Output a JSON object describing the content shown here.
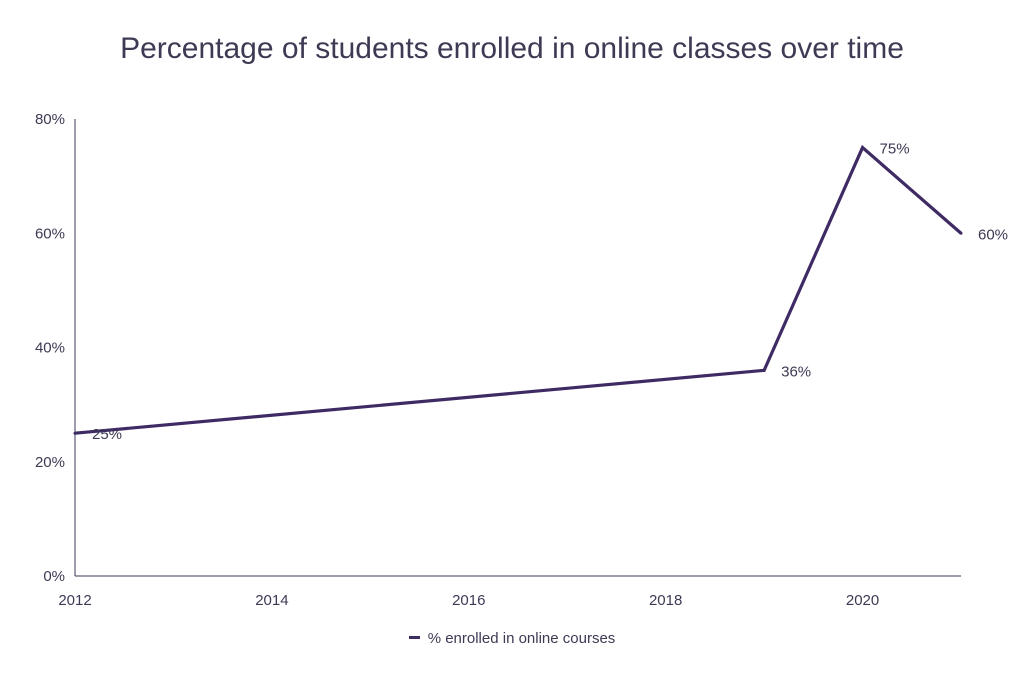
{
  "chart_data": {
    "type": "line",
    "title": "Percentage of students enrolled in online classes over time",
    "xlabel": "",
    "ylabel": "",
    "x_ticks": [
      "2012",
      "2014",
      "2016",
      "2018",
      "2020"
    ],
    "y_ticks": [
      "0%",
      "20%",
      "40%",
      "60%",
      "80%"
    ],
    "xlim": [
      2012,
      2021
    ],
    "ylim": [
      0,
      80
    ],
    "grid": false,
    "legend_position": "bottom",
    "series": [
      {
        "name": "% enrolled in online courses",
        "color": "#3f2b64",
        "points": [
          {
            "x": 2012,
            "y": 25,
            "label": "25%"
          },
          {
            "x": 2019,
            "y": 36,
            "label": "36%"
          },
          {
            "x": 2020,
            "y": 75,
            "label": "75%"
          },
          {
            "x": 2021,
            "y": 60,
            "label": "60%"
          }
        ]
      }
    ]
  }
}
